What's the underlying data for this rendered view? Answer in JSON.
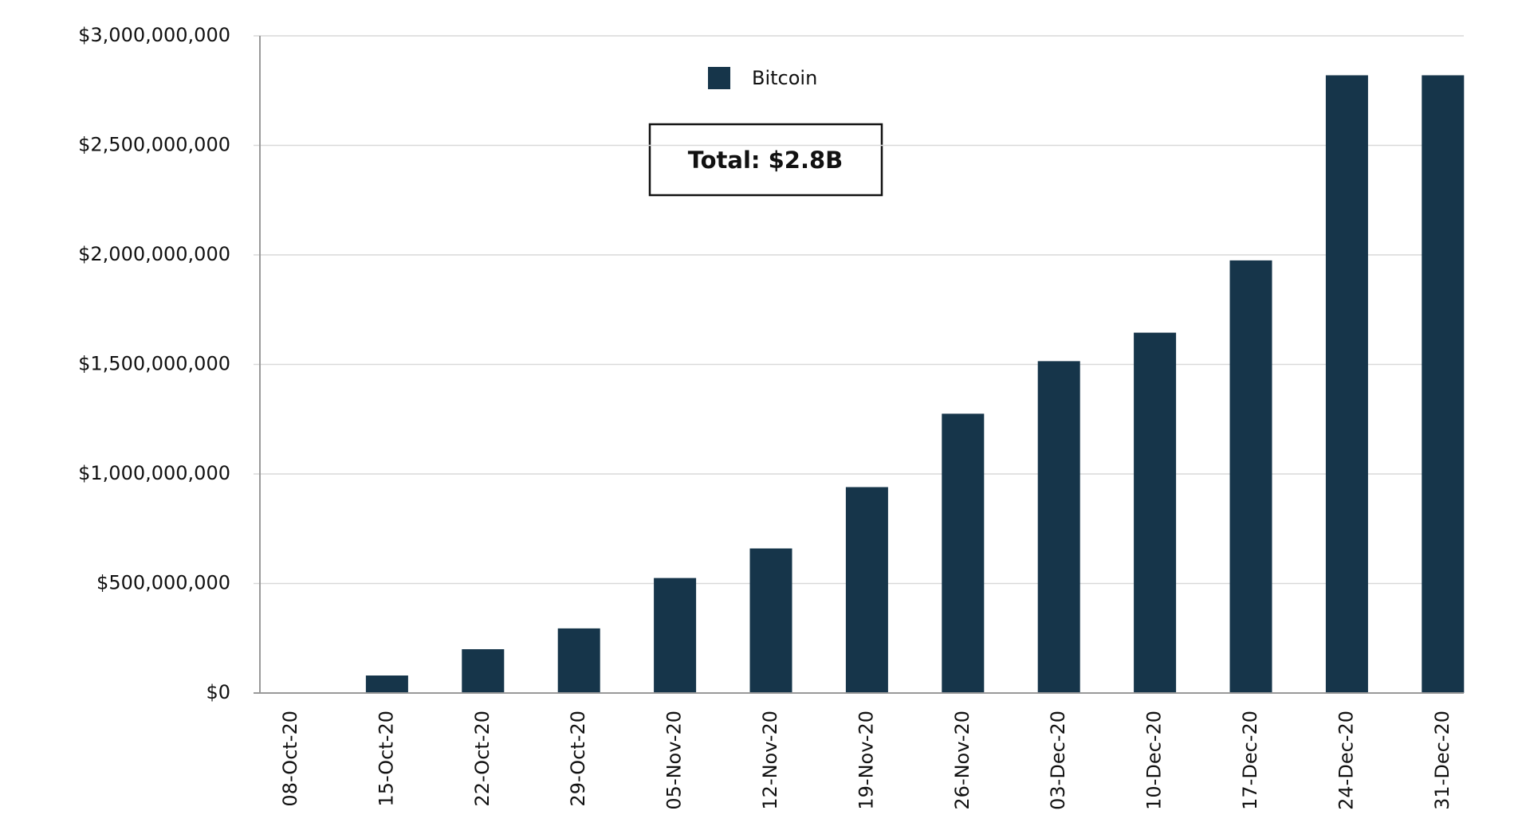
{
  "chart_data": {
    "type": "bar",
    "categories": [
      "08-Oct-20",
      "15-Oct-20",
      "22-Oct-20",
      "29-Oct-20",
      "05-Nov-20",
      "12-Nov-20",
      "19-Nov-20",
      "26-Nov-20",
      "03-Dec-20",
      "10-Dec-20",
      "17-Dec-20",
      "24-Dec-20",
      "31-Dec-20"
    ],
    "series": [
      {
        "name": "Bitcoin",
        "color": "#16354a",
        "values": [
          0,
          80000000,
          200000000,
          295000000,
          525000000,
          660000000,
          940000000,
          1275000000,
          1515000000,
          1645000000,
          1975000000,
          2820000000,
          2820000000
        ]
      }
    ],
    "ylim": [
      0,
      3000000000
    ],
    "yticks": [
      {
        "value": 0,
        "label": "$0"
      },
      {
        "value": 500000000,
        "label": "$500,000,000"
      },
      {
        "value": 1000000000,
        "label": "$1,000,000,000"
      },
      {
        "value": 1500000000,
        "label": "$1,500,000,000"
      },
      {
        "value": 2000000000,
        "label": "$2,000,000,000"
      },
      {
        "value": 2500000000,
        "label": "$2,500,000,000"
      },
      {
        "value": 3000000000,
        "label": "$3,000,000,000"
      }
    ],
    "grid": true,
    "legend": "top",
    "annotation": "Total: $2.8B"
  }
}
